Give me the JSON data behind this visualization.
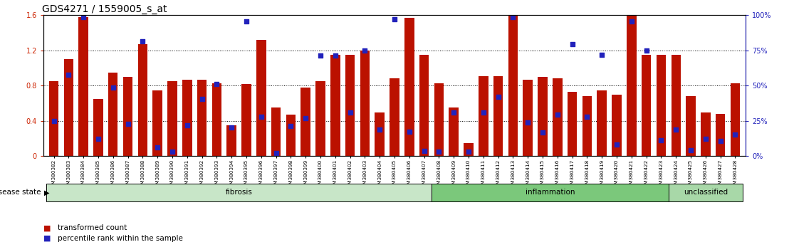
{
  "title": "GDS4271 / 1559005_s_at",
  "samples": [
    "GSM380382",
    "GSM380383",
    "GSM380384",
    "GSM380385",
    "GSM380386",
    "GSM380387",
    "GSM380388",
    "GSM380389",
    "GSM380390",
    "GSM380391",
    "GSM380392",
    "GSM380393",
    "GSM380394",
    "GSM380395",
    "GSM380396",
    "GSM380397",
    "GSM380398",
    "GSM380399",
    "GSM380400",
    "GSM380401",
    "GSM380402",
    "GSM380403",
    "GSM380404",
    "GSM380405",
    "GSM380406",
    "GSM380407",
    "GSM380408",
    "GSM380409",
    "GSM380410",
    "GSM380411",
    "GSM380412",
    "GSM380413",
    "GSM380414",
    "GSM380415",
    "GSM380416",
    "GSM380417",
    "GSM380418",
    "GSM380419",
    "GSM380420",
    "GSM380421",
    "GSM380422",
    "GSM380423",
    "GSM380424",
    "GSM380425",
    "GSM380426",
    "GSM380427",
    "GSM380428"
  ],
  "bar_values": [
    0.85,
    1.1,
    1.58,
    0.65,
    0.95,
    0.9,
    1.27,
    0.75,
    0.85,
    0.87,
    0.87,
    0.83,
    0.35,
    0.82,
    1.32,
    0.55,
    0.47,
    0.78,
    0.85,
    1.15,
    1.15,
    1.2,
    0.5,
    0.88,
    1.57,
    1.15,
    0.83,
    0.55,
    0.15,
    0.91,
    0.91,
    1.6,
    0.87,
    0.9,
    0.88,
    0.73,
    0.68,
    0.75,
    0.7,
    1.6,
    1.15,
    1.15,
    1.15,
    0.68,
    0.5,
    0.48,
    0.83
  ],
  "dot_values": [
    0.4,
    0.92,
    1.58,
    0.2,
    0.78,
    0.37,
    1.3,
    0.1,
    0.05,
    0.35,
    0.65,
    0.82,
    0.33,
    1.53,
    0.45,
    0.04,
    0.34,
    0.43,
    1.14,
    1.14,
    0.5,
    1.2,
    0.3,
    1.55,
    0.28,
    0.06,
    0.05,
    0.5,
    0.05,
    0.5,
    0.67,
    1.58,
    0.38,
    0.27,
    0.47,
    1.27,
    0.45,
    1.15,
    0.13,
    1.53,
    1.2,
    0.18,
    0.3,
    0.07,
    0.2,
    0.17,
    0.25
  ],
  "groups": [
    {
      "label": "fibrosis",
      "start": 0,
      "end": 26,
      "color": "#c8e6c8"
    },
    {
      "label": "inflammation",
      "start": 26,
      "end": 42,
      "color": "#7bc87b"
    },
    {
      "label": "unclassified",
      "start": 42,
      "end": 47,
      "color": "#a8d8a8"
    }
  ],
  "ylim": [
    0,
    1.6
  ],
  "yticks": [
    0,
    0.4,
    0.8,
    1.2,
    1.6
  ],
  "ytick_labels_left": [
    "0",
    "0.4",
    "0.8",
    "1.2",
    "1.6"
  ],
  "right_ytick_labels": [
    "0%",
    "25%",
    "50%",
    "75%",
    "100%"
  ],
  "bar_color": "#bb1100",
  "dot_color": "#2222bb",
  "left_tick_color": "#cc2200",
  "right_tick_color": "#2222bb",
  "background_color": "#ffffff",
  "legend_items": [
    {
      "label": "transformed count",
      "color": "#bb1100"
    },
    {
      "label": "percentile rank within the sample",
      "color": "#2222bb"
    }
  ],
  "disease_state_label": "disease state",
  "title_fontsize": 10,
  "tick_fontsize": 7,
  "sample_fontsize": 5.2
}
